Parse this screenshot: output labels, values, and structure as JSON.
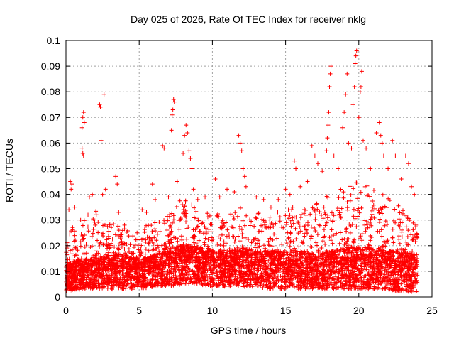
{
  "chart_data": {
    "type": "scatter",
    "title": "Day 025 of 2026, Rate Of TEC Index for receiver nklg",
    "xlabel": "GPS time / hours",
    "ylabel": "ROTI / TECUs",
    "xlim": [
      0,
      25
    ],
    "ylim": [
      0,
      0.1
    ],
    "xticks": [
      "0",
      "5",
      "10",
      "15",
      "20",
      "25"
    ],
    "yticks": [
      "0",
      "0.01",
      "0.02",
      "0.03",
      "0.04",
      "0.05",
      "0.06",
      "0.07",
      "0.08",
      "0.09",
      "0.1"
    ],
    "grid": true,
    "marker": "plus",
    "color": "#ff0000",
    "series": [
      {
        "points": [
          [
            0.1,
            0.02
          ],
          [
            0.2,
            0.034
          ],
          [
            0.3,
            0.045
          ],
          [
            0.35,
            0.042
          ],
          [
            0.4,
            0.044
          ],
          [
            0.6,
            0.035
          ],
          [
            1.0,
            0.03
          ],
          [
            1.1,
            0.058
          ],
          [
            1.15,
            0.056
          ],
          [
            1.2,
            0.055
          ],
          [
            1.1,
            0.066
          ],
          [
            1.15,
            0.07
          ],
          [
            1.2,
            0.072
          ],
          [
            1.25,
            0.068
          ],
          [
            1.6,
            0.039
          ],
          [
            1.8,
            0.04
          ],
          [
            2.0,
            0.028
          ],
          [
            2.3,
            0.075
          ],
          [
            2.35,
            0.074
          ],
          [
            2.4,
            0.061
          ],
          [
            2.6,
            0.079
          ],
          [
            2.5,
            0.04
          ],
          [
            2.7,
            0.042
          ],
          [
            3.4,
            0.047
          ],
          [
            3.5,
            0.044
          ],
          [
            3.6,
            0.033
          ],
          [
            4.0,
            0.028
          ],
          [
            5.2,
            0.034
          ],
          [
            5.5,
            0.033
          ],
          [
            5.9,
            0.044
          ],
          [
            6.1,
            0.038
          ],
          [
            6.6,
            0.059
          ],
          [
            6.7,
            0.058
          ],
          [
            7.0,
            0.039
          ],
          [
            7.2,
            0.065
          ],
          [
            7.25,
            0.071
          ],
          [
            7.3,
            0.073
          ],
          [
            7.35,
            0.077
          ],
          [
            7.4,
            0.076
          ],
          [
            7.6,
            0.045
          ],
          [
            8.0,
            0.056
          ],
          [
            8.1,
            0.063
          ],
          [
            8.2,
            0.067
          ],
          [
            8.3,
            0.064
          ],
          [
            8.4,
            0.057
          ],
          [
            8.5,
            0.054
          ],
          [
            8.6,
            0.05
          ],
          [
            8.7,
            0.042
          ],
          [
            9.0,
            0.038
          ],
          [
            9.5,
            0.039
          ],
          [
            10.2,
            0.046
          ],
          [
            10.5,
            0.039
          ],
          [
            11.0,
            0.042
          ],
          [
            11.5,
            0.041
          ],
          [
            11.8,
            0.063
          ],
          [
            11.9,
            0.06
          ],
          [
            12.0,
            0.057
          ],
          [
            12.1,
            0.05
          ],
          [
            12.2,
            0.047
          ],
          [
            12.3,
            0.043
          ],
          [
            13.0,
            0.039
          ],
          [
            13.5,
            0.038
          ],
          [
            14.0,
            0.035
          ],
          [
            14.5,
            0.038
          ],
          [
            15.0,
            0.042
          ],
          [
            15.3,
            0.04
          ],
          [
            15.6,
            0.053
          ],
          [
            15.7,
            0.05
          ],
          [
            16.0,
            0.043
          ],
          [
            16.5,
            0.045
          ],
          [
            16.8,
            0.059
          ],
          [
            17.0,
            0.055
          ],
          [
            17.2,
            0.052
          ],
          [
            17.5,
            0.049
          ],
          [
            17.8,
            0.057
          ],
          [
            17.85,
            0.062
          ],
          [
            17.9,
            0.067
          ],
          [
            17.95,
            0.072
          ],
          [
            18.0,
            0.082
          ],
          [
            18.05,
            0.087
          ],
          [
            18.1,
            0.09
          ],
          [
            18.3,
            0.055
          ],
          [
            18.6,
            0.05
          ],
          [
            18.9,
            0.066
          ],
          [
            19.0,
            0.072
          ],
          [
            19.1,
            0.079
          ],
          [
            19.2,
            0.087
          ],
          [
            19.3,
            0.06
          ],
          [
            19.5,
            0.058
          ],
          [
            19.6,
            0.075
          ],
          [
            19.7,
            0.082
          ],
          [
            19.75,
            0.091
          ],
          [
            19.8,
            0.094
          ],
          [
            19.85,
            0.096
          ],
          [
            20.0,
            0.07
          ],
          [
            20.1,
            0.08
          ],
          [
            20.15,
            0.082
          ],
          [
            20.2,
            0.088
          ],
          [
            20.3,
            0.061
          ],
          [
            20.5,
            0.058
          ],
          [
            20.8,
            0.05
          ],
          [
            21.2,
            0.064
          ],
          [
            21.4,
            0.068
          ],
          [
            21.5,
            0.063
          ],
          [
            21.6,
            0.06
          ],
          [
            21.7,
            0.055
          ],
          [
            22.0,
            0.05
          ],
          [
            22.3,
            0.061
          ],
          [
            22.5,
            0.055
          ],
          [
            22.9,
            0.046
          ],
          [
            23.2,
            0.055
          ],
          [
            23.4,
            0.052
          ],
          [
            23.6,
            0.043
          ],
          [
            23.8,
            0.04
          ],
          [
            23.9,
            0.028
          ]
        ]
      }
    ],
    "band_profile": {
      "x": [
        0,
        1,
        2,
        3,
        4,
        5,
        6,
        7,
        8,
        9,
        10,
        11,
        12,
        13,
        14,
        15,
        16,
        17,
        18,
        19,
        20,
        21,
        22,
        23,
        24
      ],
      "low": [
        0.002,
        0.003,
        0.003,
        0.003,
        0.003,
        0.003,
        0.004,
        0.004,
        0.005,
        0.005,
        0.004,
        0.004,
        0.004,
        0.004,
        0.003,
        0.003,
        0.003,
        0.003,
        0.003,
        0.003,
        0.003,
        0.003,
        0.003,
        0.002,
        0.002
      ],
      "median": [
        0.009,
        0.01,
        0.01,
        0.011,
        0.011,
        0.01,
        0.011,
        0.012,
        0.014,
        0.013,
        0.012,
        0.012,
        0.013,
        0.012,
        0.012,
        0.012,
        0.012,
        0.011,
        0.012,
        0.013,
        0.013,
        0.013,
        0.012,
        0.012,
        0.011
      ],
      "high": [
        0.025,
        0.03,
        0.034,
        0.029,
        0.028,
        0.028,
        0.029,
        0.032,
        0.04,
        0.034,
        0.034,
        0.033,
        0.035,
        0.033,
        0.032,
        0.035,
        0.036,
        0.036,
        0.04,
        0.043,
        0.045,
        0.043,
        0.04,
        0.034,
        0.028
      ]
    }
  }
}
